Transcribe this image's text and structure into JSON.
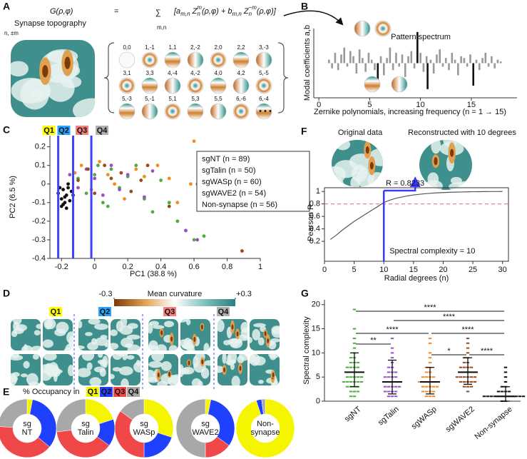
{
  "figure": {
    "panel_labels": [
      "A",
      "B",
      "C",
      "D",
      "E",
      "F",
      "G"
    ]
  },
  "panel_a": {
    "equation": {
      "lhs": "G(ρ,φ)",
      "equals": "=",
      "sum": "∑",
      "sum_index": "m,n",
      "rhs": [
        {
          "text": "[a",
          "pos": "base"
        },
        {
          "text": "m,n",
          "pos": "sub"
        },
        {
          "text": " Z",
          "pos": "base"
        },
        {
          "text": "n",
          "pos": "sub"
        },
        {
          "text": "m",
          "pos": "sup"
        },
        {
          "text": "(ρ,φ) + b",
          "pos": "base"
        },
        {
          "text": "m,n",
          "pos": "sub"
        },
        {
          "text": " Z",
          "pos": "base"
        },
        {
          "text": "n",
          "pos": "sub"
        },
        {
          "text": "−m",
          "pos": "sup"
        },
        {
          "text": "(ρ,φ)]",
          "pos": "base"
        }
      ]
    },
    "caption": "Synapse topography",
    "index_label": "n, ±m",
    "modes": [
      "0,0",
      "1,-1",
      "1,1",
      "2,-2",
      "2,0",
      "2,2",
      "3,-3",
      "3,1",
      "3,3",
      "4,-4",
      "4,-2",
      "4,0",
      "4,2",
      "5,-5",
      "5,-3",
      "5,-1",
      "5,1",
      "5,3",
      "5,5",
      "6,-6",
      "6,-4"
    ],
    "ellipsis": "• • •"
  },
  "panel_d": {
    "colorbar_title": "Mean curvature",
    "colorbar_lim": [
      -0.3,
      0.3
    ],
    "colorbar_ticks": [
      {
        "value": -0.3,
        "label": "-0.3"
      },
      {
        "value": 0.3,
        "label": "+0.3"
      }
    ],
    "groups": [
      "Q1",
      "Q2",
      "Q3",
      "Q4"
    ],
    "group_colors": [
      "#ffff00",
      "#29a3ff",
      "#f47f7f",
      "#b0b0b0"
    ]
  },
  "chart_data": [
    {
      "type": "bar",
      "title": "Pattern spectrum",
      "x_label": "Zernike polynomials, increasing frequency (n = 1 → 15)",
      "y_label": "Modal coefficients a,b",
      "xlim": [
        -0.5,
        19.5
      ],
      "xticks": [
        0,
        5,
        10,
        15
      ],
      "ylim": [
        -1,
        1
      ],
      "series": [
        {
          "color": "#999999",
          "x": [
            1.0,
            1.3,
            1.6,
            1.9,
            2.2,
            2.5,
            2.8,
            3.1,
            3.4,
            3.7,
            4.0,
            4.3,
            4.6,
            4.9,
            5.2,
            5.5,
            6.1,
            6.4,
            6.7,
            7.0,
            7.3,
            7.6,
            7.9,
            8.2,
            8.5,
            8.8,
            9.1,
            9.4,
            10.0,
            10.3,
            10.6,
            11.0,
            11.3,
            11.6,
            11.9,
            12.2,
            12.5,
            12.8,
            13.1,
            13.4,
            13.7,
            14.0,
            14.3,
            14.6,
            14.9,
            15.5,
            15.8,
            16.1,
            16.4,
            16.7,
            17.0,
            17.3,
            17.6,
            17.9
          ],
          "values": [
            0.1,
            -0.15,
            0.3,
            -0.2,
            0.25,
            0.45,
            -0.1,
            0.35,
            0.2,
            -0.3,
            0.4,
            0.15,
            -0.25,
            0.3,
            0.1,
            -0.2,
            0.2,
            -0.35,
            0.15,
            0.45,
            -0.2,
            0.3,
            -0.1,
            0.25,
            -0.4,
            0.2,
            0.35,
            -0.15,
            0.3,
            -0.25,
            0.2,
            0.1,
            -0.3,
            0.25,
            0.4,
            -0.1,
            0.15,
            -0.2,
            0.3,
            0.1,
            -0.35,
            0.2,
            0.15,
            -0.1,
            0.25,
            0.1,
            -0.2,
            0.15,
            0.3,
            -0.1,
            0.2,
            -0.15,
            0.1,
            0.05
          ]
        },
        {
          "color": "#111111",
          "x": [
            5.8,
            9.7,
            10.7,
            15.2
          ],
          "values": [
            -0.7,
            0.9,
            -0.75,
            -0.65
          ]
        }
      ]
    },
    {
      "type": "scatter",
      "x_label": "PC1 (38.8 %)",
      "y_label": "PC2 (6.5 %)",
      "xlim": [
        -0.27,
        1.0
      ],
      "xticks": [
        -0.2,
        0,
        0.2,
        0.4,
        0.6,
        0.8,
        1
      ],
      "ylim": [
        -0.4,
        0.26
      ],
      "yticks": [
        -0.4,
        -0.3,
        -0.2,
        -0.1,
        0,
        0.1,
        0.2
      ],
      "quadrants": [
        "Q1",
        "Q2",
        "Q3",
        "Q4"
      ],
      "quadrant_colors": [
        "#ffff00",
        "#29a3ff",
        "#f47f7f",
        "#b0b0b0"
      ],
      "quadrant_bounds": [
        -0.22,
        -0.13,
        -0.02
      ],
      "bound_color": "#4040ff",
      "series": [
        {
          "name": "sgNT (n = 89)",
          "color": "#4caf3c",
          "x": [
            -0.1,
            -0.05,
            0.0,
            0.05,
            0.1,
            0.15,
            0.2,
            0.25,
            0.3,
            0.35,
            0.4,
            0.45,
            0.5,
            0.55,
            0.6,
            0.62,
            0.66,
            -0.12,
            0.08,
            0.02
          ],
          "values": [
            0.03,
            -0.05,
            0.05,
            -0.1,
            0.08,
            -0.02,
            0.04,
            0.1,
            -0.08,
            -0.15,
            0.02,
            -0.1,
            -0.2,
            -0.25,
            -0.3,
            0.0,
            -0.28,
            0.06,
            -0.12,
            0.1
          ]
        },
        {
          "name": "sgTalin (n = 50)",
          "color": "#9b4fc4",
          "x": [
            -0.15,
            -0.1,
            -0.05,
            0.0,
            0.05,
            0.1,
            0.15,
            0.2,
            0.3,
            0.35,
            0.55,
            0.62
          ],
          "values": [
            0.05,
            -0.02,
            0.08,
            0.03,
            -0.06,
            0.1,
            -0.03,
            0.05,
            -0.07,
            0.07,
            -0.25,
            -0.3
          ]
        },
        {
          "name": "sgWASp (n = 60)",
          "color": "#f28c1e",
          "x": [
            -0.12,
            -0.08,
            -0.02,
            0.03,
            0.08,
            0.12,
            0.18,
            0.25,
            0.3,
            0.38,
            0.45,
            0.5,
            0.58,
            0.6
          ],
          "values": [
            0.06,
            0.1,
            -0.03,
            0.12,
            0.05,
            0.0,
            -0.08,
            0.08,
            0.04,
            0.1,
            0.03,
            -0.1,
            0.0,
            0.23
          ]
        },
        {
          "name": "sgWAVE2 (n = 54)",
          "color": "#9c4a1a",
          "x": [
            -0.1,
            -0.04,
            0.0,
            0.06,
            0.1,
            0.16,
            0.22,
            0.28,
            0.32,
            0.45,
            0.65,
            0.89
          ],
          "values": [
            0.02,
            0.08,
            -0.05,
            0.1,
            0.03,
            0.06,
            -0.04,
            0.02,
            0.1,
            -0.12,
            0.12,
            -0.36
          ]
        },
        {
          "name": "Non-synapse (n = 56)",
          "color": "#111111",
          "x": [
            -0.22,
            -0.2,
            -0.19,
            -0.18,
            -0.17,
            -0.16,
            -0.15,
            -0.14,
            -0.21,
            -0.2,
            -0.18,
            -0.16,
            -0.13,
            -0.19,
            -0.17
          ],
          "values": [
            -0.05,
            -0.08,
            -0.03,
            -0.1,
            -0.06,
            -0.02,
            -0.09,
            -0.04,
            -0.02,
            -0.12,
            -0.07,
            0.0,
            -0.06,
            -0.11,
            -0.13
          ]
        }
      ]
    },
    {
      "type": "donut",
      "title": "% Occupancy in",
      "categories": [
        "Q1",
        "Q2",
        "Q3",
        "Q4"
      ],
      "colors": [
        "#f5f500",
        "#2040ff",
        "#f04848",
        "#a8a8a8"
      ],
      "pies": [
        {
          "label": [
            "sg",
            "NT"
          ],
          "values": [
            3,
            33,
            40,
            24
          ]
        },
        {
          "label": [
            "sg",
            "Talin"
          ],
          "values": [
            20,
            15,
            38,
            27
          ]
        },
        {
          "label": [
            "sg",
            "WASp"
          ],
          "values": [
            30,
            20,
            35,
            15
          ]
        },
        {
          "label": [
            "sg",
            "WAVE2"
          ],
          "values": [
            3,
            32,
            15,
            50
          ]
        },
        {
          "label": [
            "Non-",
            "synapse"
          ],
          "values": [
            95,
            3,
            0,
            2
          ]
        }
      ]
    },
    {
      "type": "line",
      "x_label": "Radial degrees (n)",
      "y_label": "Pearson R",
      "color": "#555555",
      "xlim": [
        0,
        31
      ],
      "xticks": [
        0,
        5,
        10,
        15,
        20,
        25,
        30
      ],
      "ylim": [
        -0.12,
        1.06
      ],
      "yticks": [
        0.2,
        0.4,
        0.6,
        0.8,
        1
      ],
      "x": [
        1,
        2,
        3,
        4,
        5,
        6,
        7,
        8,
        9,
        10,
        11,
        12,
        13,
        14,
        15,
        16,
        17,
        18,
        19,
        20,
        21,
        22,
        23,
        24,
        25,
        26,
        27,
        28,
        29,
        30
      ],
      "values": [
        0.23,
        0.3,
        0.38,
        0.45,
        0.52,
        0.58,
        0.64,
        0.7,
        0.76,
        0.8233,
        0.86,
        0.89,
        0.91,
        0.93,
        0.945,
        0.955,
        0.965,
        0.972,
        0.978,
        0.983,
        0.987,
        0.99,
        0.992,
        0.994,
        0.996,
        0.997,
        0.998,
        0.999,
        0.999,
        1.0
      ],
      "threshold": 0.8,
      "threshold_color": "#e06060",
      "complexity": 10,
      "complexity_color": "#3b3bff",
      "complexity_label": "Spectral complexity = 10",
      "r_label": "R = 0.8233",
      "image_labels": [
        "Original data",
        "Reconstructed with 10 degrees"
      ]
    },
    {
      "type": "strip",
      "y_label": "Spectral complexity",
      "ylim": [
        0,
        21
      ],
      "yticks": [
        0,
        5,
        10,
        15,
        20
      ],
      "categories": [
        "sgNT",
        "sgTalin",
        "sgWASp",
        "sgWAVE2",
        "Non-synapse"
      ],
      "groups": [
        {
          "color": "#4caf3c",
          "center": 6,
          "whisker": [
            3,
            10
          ],
          "values": [
            1,
            1,
            2,
            2,
            2,
            3,
            3,
            3,
            3,
            4,
            4,
            4,
            4,
            4,
            4,
            5,
            5,
            5,
            5,
            5,
            6,
            6,
            6,
            6,
            6,
            7,
            7,
            7,
            7,
            8,
            8,
            8,
            9,
            9,
            10,
            11,
            12,
            13,
            15,
            19
          ]
        },
        {
          "color": "#9b4fc4",
          "center": 4,
          "whisker": [
            1.5,
            8.5
          ],
          "values": [
            1,
            1,
            1,
            2,
            2,
            2,
            2,
            3,
            3,
            3,
            3,
            3,
            4,
            4,
            4,
            4,
            4,
            5,
            5,
            5,
            5,
            6,
            6,
            6,
            7,
            7,
            8,
            9,
            10,
            11,
            13
          ]
        },
        {
          "color": "#f28c1e",
          "center": 4,
          "whisker": [
            1.5,
            7
          ],
          "values": [
            1,
            1,
            1,
            2,
            2,
            2,
            2,
            3,
            3,
            3,
            3,
            3,
            4,
            4,
            4,
            4,
            4,
            4,
            5,
            5,
            5,
            5,
            6,
            6,
            7,
            7,
            8,
            9,
            10,
            12,
            13
          ]
        },
        {
          "color": "#9c4a1a",
          "center": 6,
          "whisker": [
            3.5,
            9
          ],
          "values": [
            2,
            3,
            3,
            3,
            4,
            4,
            4,
            4,
            4,
            5,
            5,
            5,
            5,
            5,
            5,
            6,
            6,
            6,
            6,
            6,
            7,
            7,
            7,
            7,
            8,
            8,
            9,
            9,
            10,
            11,
            12,
            13
          ]
        },
        {
          "color": "#111111",
          "center": 1,
          "whisker": [
            0,
            3
          ],
          "values": [
            0,
            0,
            1,
            1,
            1,
            1,
            1,
            1,
            1,
            1,
            1,
            1,
            1,
            1,
            2,
            2,
            2,
            2,
            3,
            3,
            4,
            5,
            6,
            7
          ]
        }
      ],
      "significance": [
        {
          "pair": [
            "sgNT",
            "Non-synapse"
          ],
          "label": "****"
        },
        {
          "pair": [
            "sgTalin",
            "Non-synapse"
          ],
          "label": "****"
        },
        {
          "pair": [
            "sgNT",
            "sgWASp"
          ],
          "label": "****"
        },
        {
          "pair": [
            "sgWASp",
            "Non-synapse"
          ],
          "label": "****"
        },
        {
          "pair": [
            "sgNT",
            "sgTalin"
          ],
          "label": "**"
        },
        {
          "pair": [
            "sgWASp",
            "sgWAVE2"
          ],
          "label": "*"
        },
        {
          "pair": [
            "sgWAVE2",
            "Non-synapse"
          ],
          "label": "****"
        }
      ]
    }
  ]
}
